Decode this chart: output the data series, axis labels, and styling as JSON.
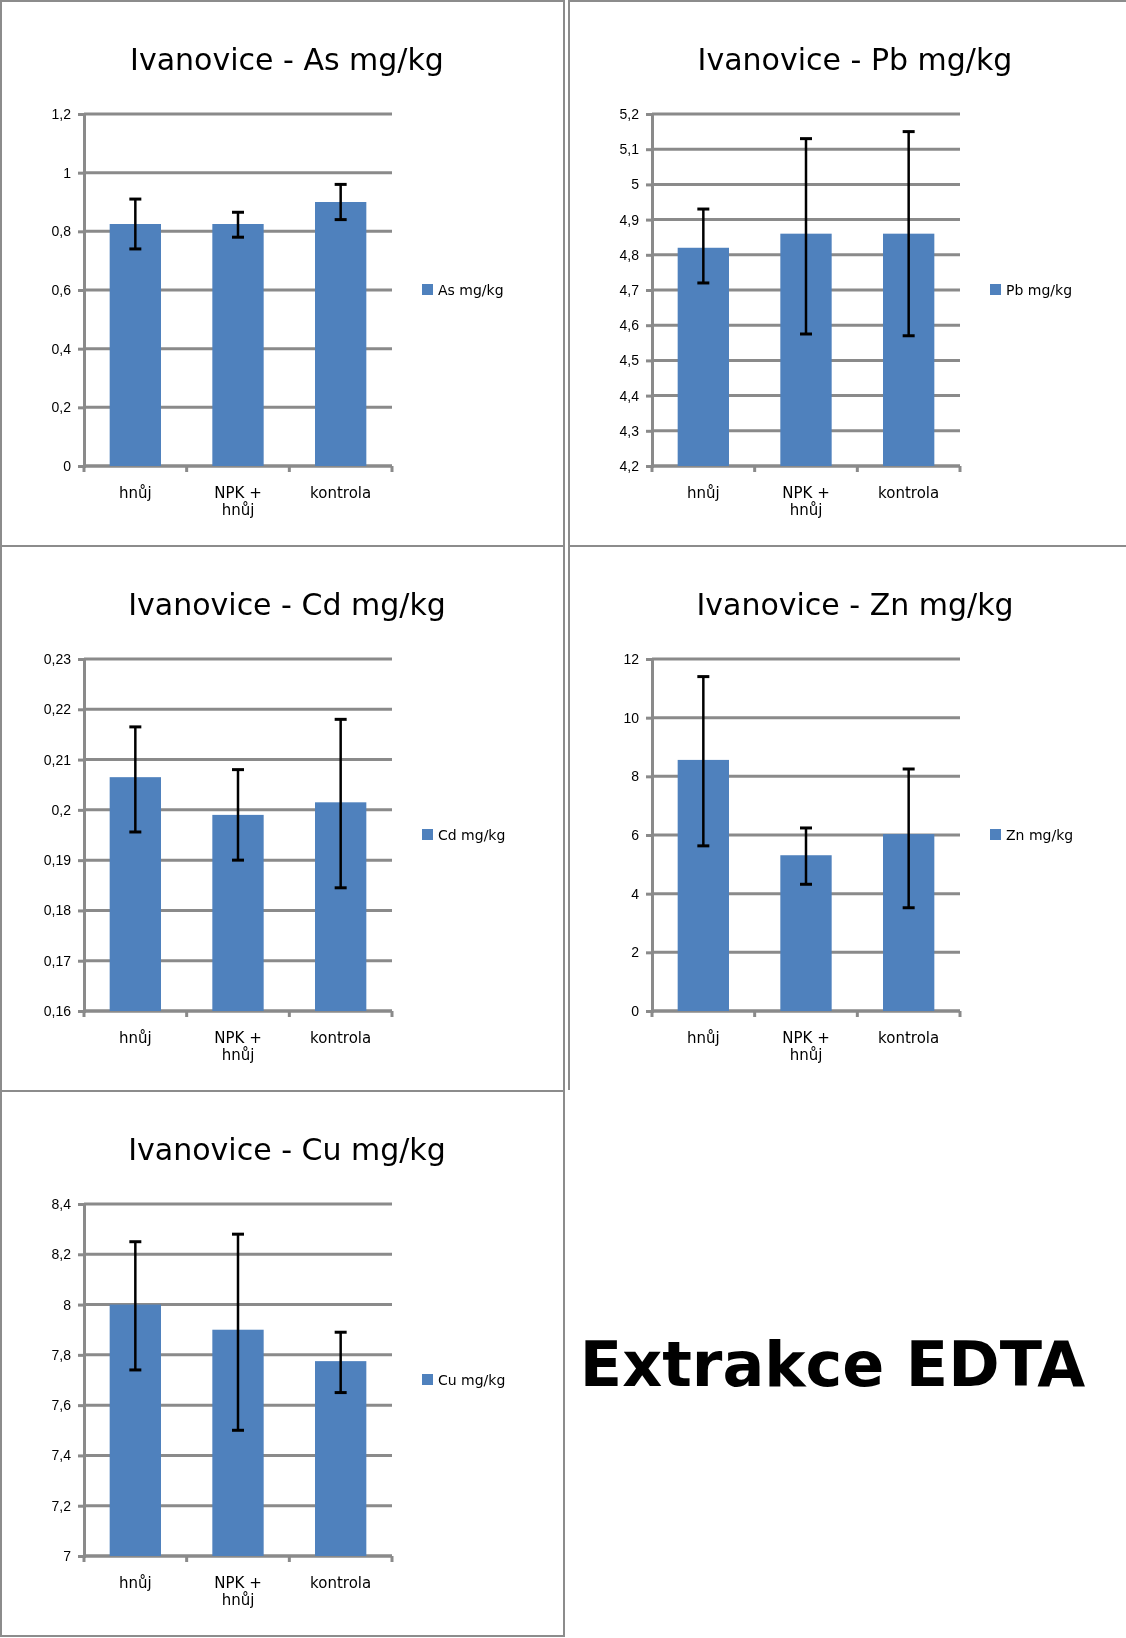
{
  "chart_data": [
    {
      "type": "bar",
      "title": "Ivanovice - As mg/kg",
      "categories": [
        "hnůj",
        "NPK + hnůj",
        "kontrola"
      ],
      "series": [
        {
          "name": "As mg/kg",
          "color": "#4f81bd",
          "values": [
            0.825,
            0.825,
            0.9
          ],
          "errors": [
            [
              0.74,
              0.91
            ],
            [
              0.78,
              0.865
            ],
            [
              0.84,
              0.96
            ]
          ]
        }
      ],
      "ylim": [
        0,
        1.2
      ],
      "yticks": [
        0,
        {
          "value": 0.2,
          "label": "0,2"
        },
        {
          "value": 0.4,
          "label": "0,4"
        },
        {
          "value": 0.6,
          "label": "0,6"
        },
        {
          "value": 0.8,
          "label": "0,8"
        },
        1,
        {
          "value": 1.2,
          "label": "1,2"
        }
      ],
      "grid": "y",
      "legend": "right"
    },
    {
      "type": "bar",
      "title": "Ivanovice - Pb mg/kg",
      "categories": [
        "hnůj",
        "NPK + hnůj",
        "kontrola"
      ],
      "series": [
        {
          "name": "Pb mg/kg",
          "color": "#4f81bd",
          "values": [
            4.82,
            4.86,
            4.86
          ],
          "errors": [
            [
              4.72,
              4.93
            ],
            [
              4.575,
              5.13
            ],
            [
              4.57,
              5.15
            ]
          ]
        }
      ],
      "ylim": [
        4.2,
        5.2
      ],
      "yticks": [
        {
          "value": 4.2,
          "label": "4,2"
        },
        {
          "value": 4.3,
          "label": "4,3"
        },
        {
          "value": 4.4,
          "label": "4,4"
        },
        {
          "value": 4.5,
          "label": "4,5"
        },
        {
          "value": 4.6,
          "label": "4,6"
        },
        {
          "value": 4.7,
          "label": "4,7"
        },
        {
          "value": 4.8,
          "label": "4,8"
        },
        {
          "value": 4.9,
          "label": "4,9"
        },
        5,
        {
          "value": 5.1,
          "label": "5,1"
        },
        {
          "value": 5.2,
          "label": "5,2"
        }
      ],
      "grid": "y",
      "legend": "right"
    },
    {
      "type": "bar",
      "title": "Ivanovice - Cd mg/kg",
      "categories": [
        "hnůj",
        "NPK + hnůj",
        "kontrola"
      ],
      "series": [
        {
          "name": "Cd mg/kg",
          "color": "#4f81bd",
          "values": [
            0.2065,
            0.199,
            0.2015
          ],
          "errors": [
            [
              0.1956,
              0.2165
            ],
            [
              0.19,
              0.208
            ],
            [
              0.1845,
              0.218
            ]
          ]
        }
      ],
      "ylim": [
        0.16,
        0.23
      ],
      "yticks": [
        {
          "value": 0.16,
          "label": "0,16"
        },
        {
          "value": 0.17,
          "label": "0,17"
        },
        {
          "value": 0.18,
          "label": "0,18"
        },
        {
          "value": 0.19,
          "label": "0,19"
        },
        {
          "value": 0.2,
          "label": "0,2"
        },
        {
          "value": 0.21,
          "label": "0,21"
        },
        {
          "value": 0.22,
          "label": "0,22"
        },
        {
          "value": 0.23,
          "label": "0,23"
        }
      ],
      "grid": "y",
      "legend": "right"
    },
    {
      "type": "bar",
      "title": "Ivanovice - Zn mg/kg",
      "categories": [
        "hnůj",
        "NPK + hnůj",
        "kontrola"
      ],
      "series": [
        {
          "name": "Zn mg/kg",
          "color": "#4f81bd",
          "values": [
            8.56,
            5.31,
            6.03
          ],
          "errors": [
            [
              5.63,
              11.4
            ],
            [
              4.32,
              6.24
            ],
            [
              3.52,
              8.25
            ]
          ]
        }
      ],
      "ylim": [
        0,
        12
      ],
      "yticks": [
        0,
        2,
        4,
        6,
        8,
        10,
        12
      ],
      "grid": "y",
      "legend": "right"
    },
    {
      "type": "bar",
      "title": "Ivanovice - Cu mg/kg",
      "categories": [
        "hnůj",
        "NPK + hnůj",
        "kontrola"
      ],
      "series": [
        {
          "name": "Cu mg/kg",
          "color": "#4f81bd",
          "values": [
            8.0,
            7.9,
            7.775
          ],
          "errors": [
            [
              7.74,
              8.25
            ],
            [
              7.5,
              8.28
            ],
            [
              7.65,
              7.89
            ]
          ]
        }
      ],
      "ylim": [
        7,
        8.4
      ],
      "yticks": [
        7,
        {
          "value": 7.2,
          "label": "7,2"
        },
        {
          "value": 7.4,
          "label": "7,4"
        },
        {
          "value": 7.6,
          "label": "7,6"
        },
        {
          "value": 7.8,
          "label": "7,8"
        },
        8,
        {
          "value": 8.2,
          "label": "8,2"
        },
        {
          "value": 8.4,
          "label": "8,4"
        }
      ],
      "grid": "y",
      "legend": "right"
    },
    {
      "type": "other",
      "title": "Extrakce EDTA"
    }
  ]
}
